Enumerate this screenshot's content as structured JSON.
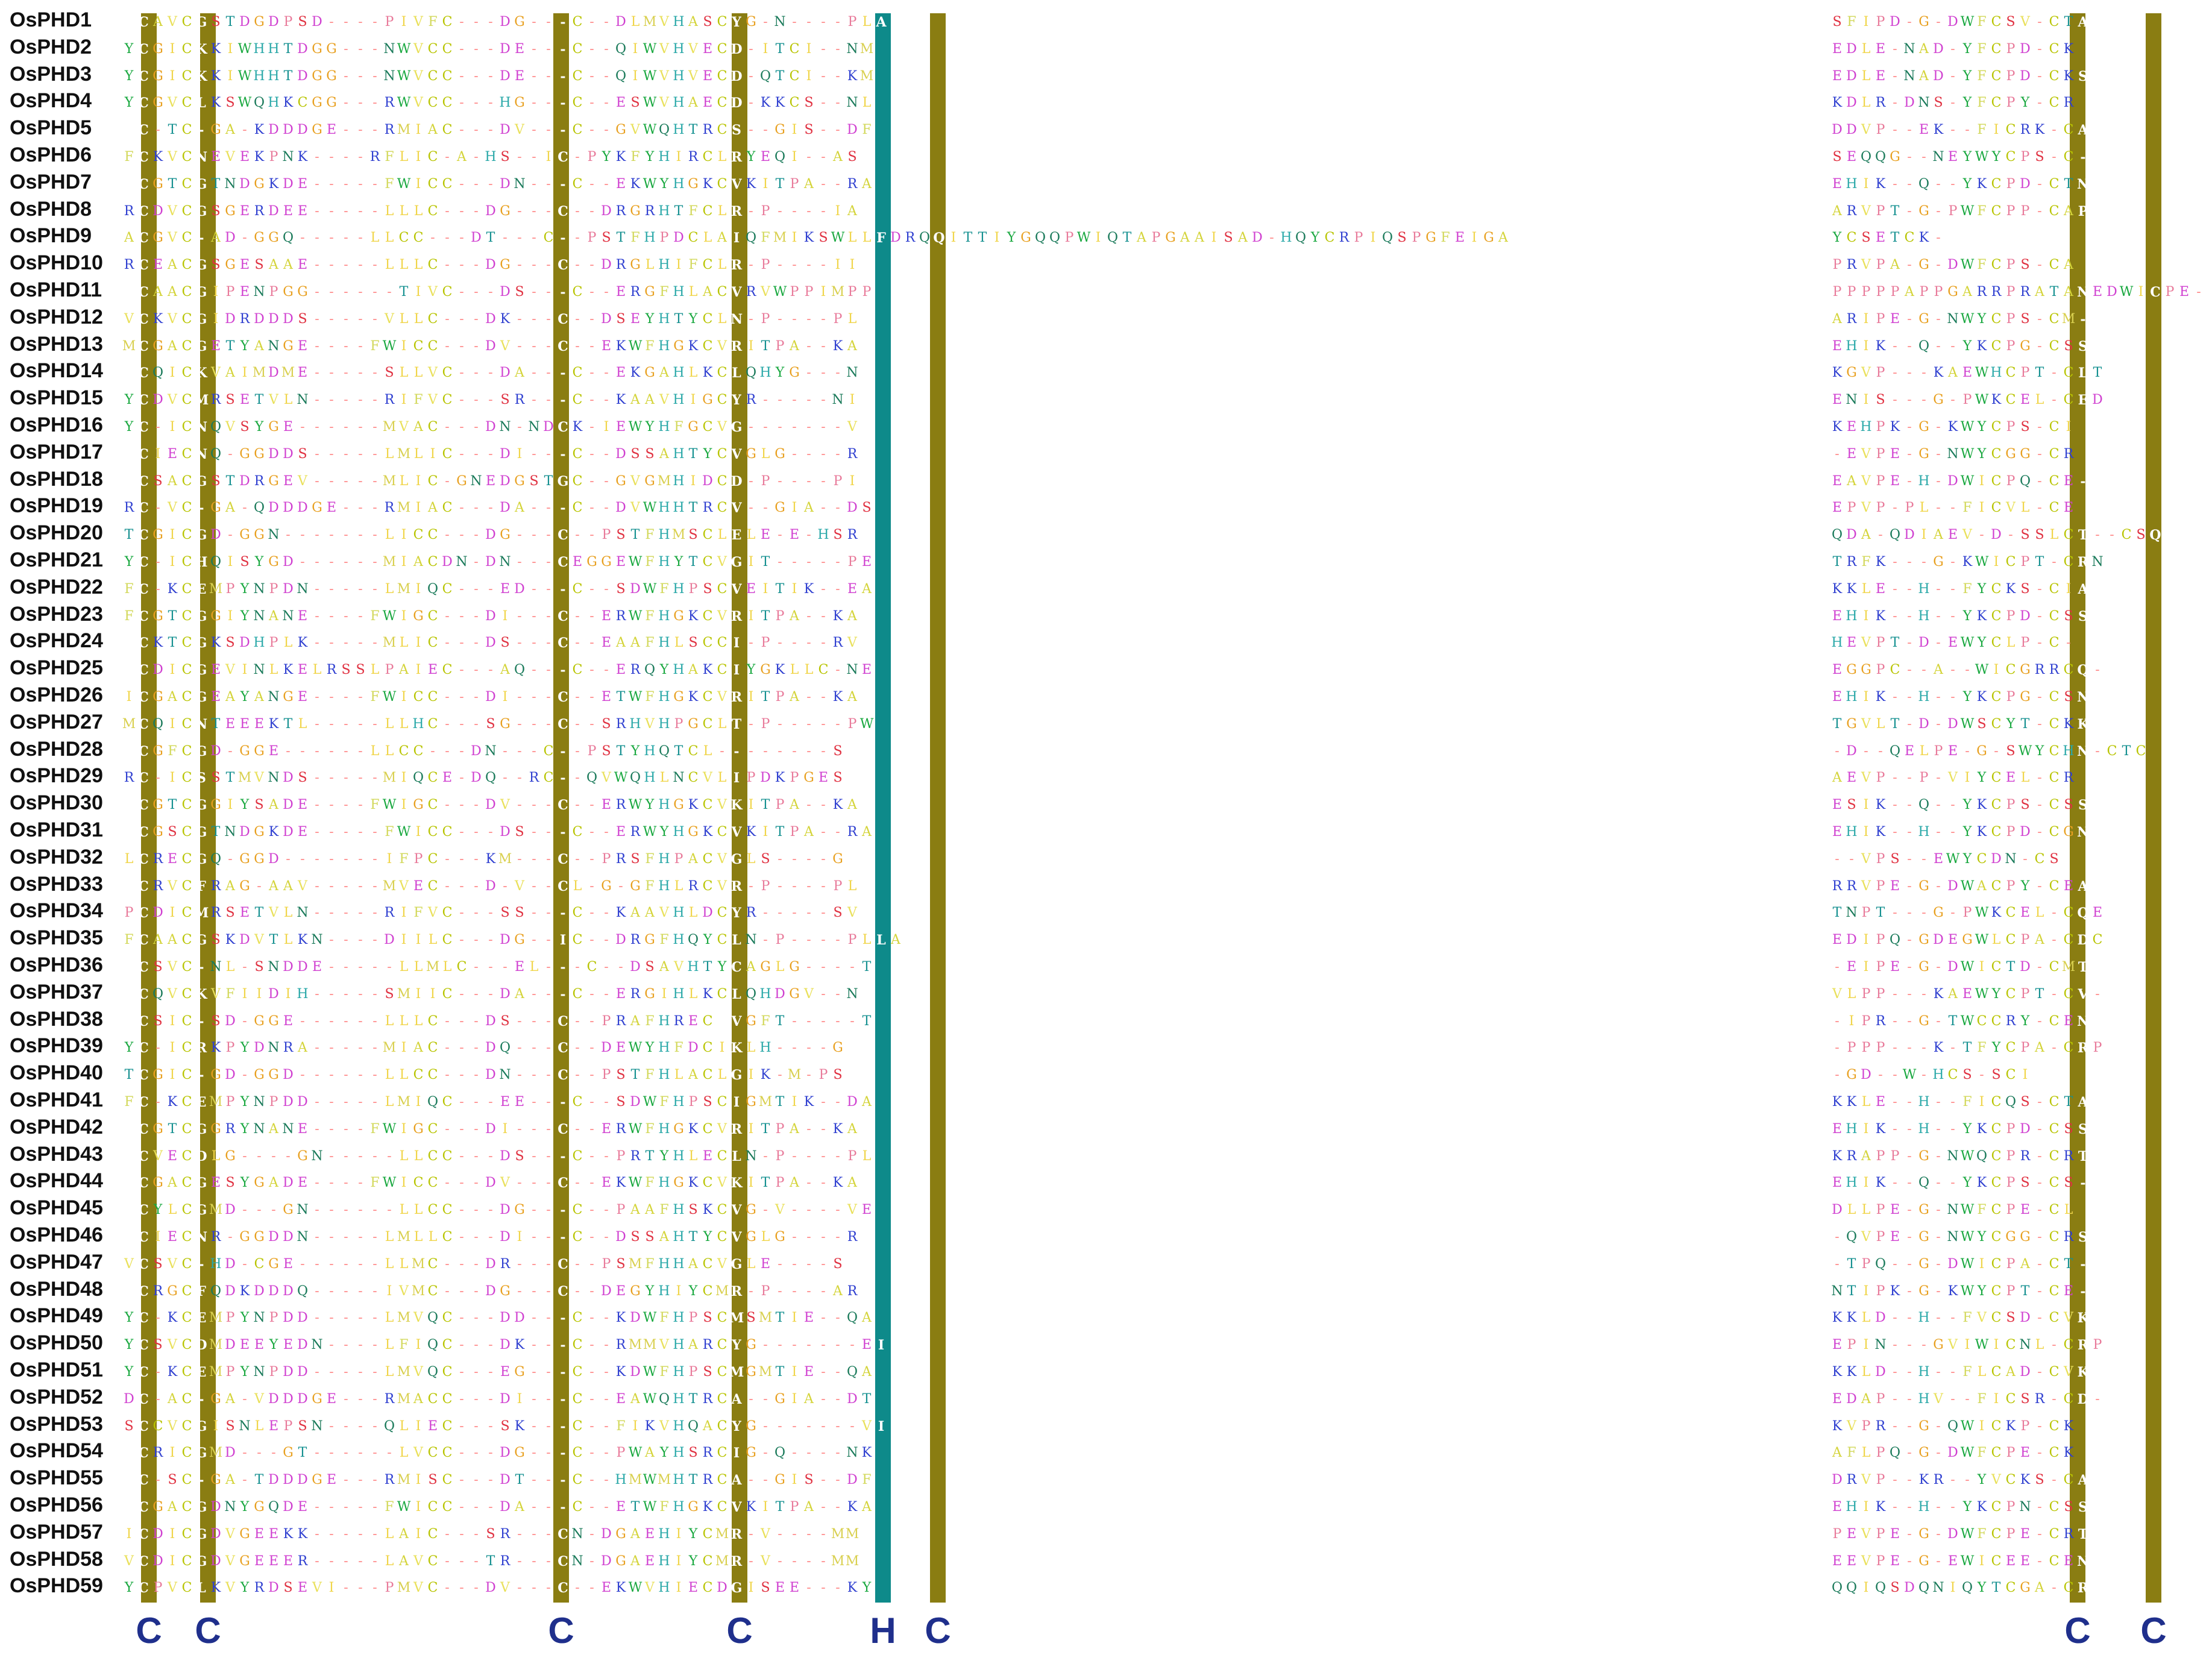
{
  "alignment": {
    "sequence_names": [
      "OsPHD1",
      "OsPHD2",
      "OsPHD3",
      "OsPHD4",
      "OsPHD5",
      "OsPHD6",
      "OsPHD7",
      "OsPHD8",
      "OsPHD9",
      "OsPHD10",
      "OsPHD11",
      "OsPHD12",
      "OsPHD13",
      "OsPHD14",
      "OsPHD15",
      "OsPHD16",
      "OsPHD17",
      "OsPHD18",
      "OsPHD19",
      "OsPHD20",
      "OsPHD21",
      "OsPHD22",
      "OsPHD23",
      "OsPHD24",
      "OsPHD25",
      "OsPHD26",
      "OsPHD27",
      "OsPHD28",
      "OsPHD29",
      "OsPHD30",
      "OsPHD31",
      "OsPHD32",
      "OsPHD33",
      "OsPHD34",
      "OsPHD35",
      "OsPHD36",
      "OsPHD37",
      "OsPHD38",
      "OsPHD39",
      "OsPHD40",
      "OsPHD41",
      "OsPHD42",
      "OsPHD43",
      "OsPHD44",
      "OsPHD45",
      "OsPHD46",
      "OsPHD47",
      "OsPHD48",
      "OsPHD49",
      "OsPHD50",
      "OsPHD51",
      "OsPHD52",
      "OsPHD53",
      "OsPHD54",
      "OsPHD55",
      "OsPHD56",
      "OsPHD57",
      "OsPHD58",
      "OsPHD59"
    ],
    "segments": [
      [
        ".CAVCGSTDGDPSD----PIVFC---DG---C--DLMVHASCYG-N----PLA",
        "SFIPD-G-DWFCSV-CTA"
      ],
      [
        "YCGICKKIWHHTDGG---NWVCC---DE---C--QIWVHVECD-ITCI--NM",
        "EDLE-NAD-YFCPD-CK"
      ],
      [
        "YCGICKKIWHHTDGG---NWVCC---DE---C--QIWVHVECD-QTCI--KM",
        "EDLE-NAD-YFCPD-CKS"
      ],
      [
        "YCGVCLKSWQHKCGG---RWVCC---HG---C--ESWVHAECD-KKCS--NL",
        "KDLR-DNS-YFCPY-CR"
      ],
      [
        ".C-TC-GA-KDDDGE---RMIAC---DV---C--GVWQHTRCS--GIS--DF",
        "DDVP--EK--FICRK-CA"
      ],
      [
        "FCKVCNEVEKPNK----RFLIC-A-HS--IC-PYKFYHIRCLRYEQI--AS",
        "SEQQG--NEYWYCPS-C-"
      ],
      [
        ".CGTCGTNDGKDE-----FWICC---DN---C--EKWYHGKCVKITPA--RA",
        "EHIK--Q--YKCPD-CTN"
      ],
      [
        "RCDVCGSGERDEE-----LLLC---DG---C--DRGRHTFCLR-P----IA",
        "ARVPT-G-PWFCPP-CAP"
      ],
      [
        "ACGVC-AD-GGQ-----LLCC---DT---C--PSTFHPDCLAIQFMIKSWLLFDRQQITTIYGQQPWIQTAPGAAISAD-HQYCRPIQSPGFEIGA",
        "YCSETCK-"
      ],
      [
        "RCEACGSGESAAE-----LLLC---DG---C--DRGLHIFCLR-P----II",
        "PRVPA-G-DWFCPS-CA"
      ],
      [
        ".CAACGIPENPGG------TIVC---DS---C--ERGFHLACVRVWPPIMPP",
        "PPPPPAPPGARRPRATANEDWICPE-CE-"
      ],
      [
        "VCKVCGIDRDDDS-----VLLC---DK---C--DSEYHTYCLN-P----PL",
        "ARIPE-G-NWYCPS-CM-"
      ],
      [
        "MCGACGETYANGE----FWICC---DV---C--EKWFHGKCVRITPA--KA",
        "EHIK--Q--YKCPG-CSS"
      ],
      [
        ".CQICKVAIMDME-----SLLVC---DA---C--EKGAHLKCLQHYG---N",
        "KGVP---KAEWHCPT-CLT"
      ],
      [
        "YCDVCMRSETVLN-----RIFVC---SR---C--KAAVHIGCYR-----NI",
        "ENIS---G-PWKCEL-CED"
      ],
      [
        "YC-ICNQVSYGE------MVAC---DN-NDCK-IEWYHFGCVG-------V",
        "KEHPK-G-KWYCPS-CI"
      ],
      [
        ".CIECNQ-GGDDS-----LMLIC---DI---C--DSSAHTYCVGLG----R",
        "-EVPE-G-NWYCGG-CR"
      ],
      [
        ".CSACGSTDRGEV-----MLIC-GNEDGSTGC--GVGMHIDCD-P----PI",
        "EAVPE-H-DWICPQ-CE-"
      ],
      [
        "RC-VC-GA-QDDDGE---RMIAC---DA---C--DVWHHTRCV--GIA--DS",
        "EPVP-PL--FICVL-CE"
      ],
      [
        "TCGICGD-GGN-------LICC---DG---C--PSTFHMSCLELE-E-HSR",
        "QDA-QDIAEV-D-SSLCT--CSQ"
      ],
      [
        "YC-ICHQISYGD------MIACDN-DN---CEGGEWFHYTCVGIT-----PE",
        "TRFK---G-KWICPT-CRN"
      ],
      [
        "FC-KCEMPYNPDN-----LMIQC---ED---C--SDWFHPSCVEITIK--EA",
        "KKLE--H--FYCKS-CIA"
      ],
      [
        "FCGTCGGIYNANE----FWIGC---DI---C--ERWFHGKCVRITPA--KA",
        "EHIK--H--YKCPD-CSS"
      ],
      [
        ".CKTCGKSDHPLK-----MLIC---DS---C--EAAFHLSCCI-P----RV",
        "HEVPT-D-EWYCLP-C-"
      ],
      [
        ".CDICGEVINLKELRSSLPAIEC---AQ---C--ERQYHAKCIYGKLLC-NE",
        "EGGPC--A--WICGRRCQ-"
      ],
      [
        "ICGACGEAYANGE----FWICC---DI---C--ETWFHGKCVRITPA--KA",
        "EHIK--H--YKCPG-CSN"
      ],
      [
        "MCQICNTEEEKTL-----LLHC---SG---C--SRHVHPGCLT-P-----PW",
        "TGVLT-D-DWSCYT-CKK"
      ],
      [
        ".CGFCGD-GGE------LLCC---DN---C--PSTYHQTCL--------S",
        "-D--QELPE-G-SWYCHN-CTC"
      ],
      [
        "RC-ICSSTMVNDS-----MIQCE-DQ--RC--QVWQHLNCVLIPDKPGES",
        "AEVP--P-VIYCEL-CR"
      ],
      [
        ".CGTCGGIYSADE----FWIGC---DV---C--ERWYHGKCVKITPA--KA",
        "ESIK--Q--YKCPS-CSS"
      ],
      [
        ".CGSCGTNDGKDE-----FWICC---DS---C--ERWYHGKCVKITPA--RA",
        "EHIK--H--YKCPD-CGN"
      ],
      [
        "LCRECGQ-GGD-------IFPC---KM---C--PRSFHPACVGLS----G",
        "--VPS--EWYCDN-CS"
      ],
      [
        ".CRVCFRAG-AAV-----MVEC---D-V--CL-G-GFHLRCVR-P----PL",
        "RRVPE-G-DWACPY-CEA"
      ],
      [
        "PCDICMRSETVLN-----RIFVC---SS---C--KAAVHLDCYR-----SV",
        "TNPT---G-PWKCEL-CQE"
      ],
      [
        "FCAACGSKDVTLKN----DIILC---DG--IC--DRGFHQYCLN-P----PLLA",
        "EDIPQ-GDEGWLCPA-CDC"
      ],
      [
        ".CSVC-NL-SNDDE-----LLMLC---EL---C--DSAVHTYCAGLG----T",
        "-EIPE-G-DWICTD-CMT"
      ],
      [
        ".CQVCKVFIIDIH-----SMIIC---DA---C--ERGIHLKCLQHDGV--N",
        "VLPP---KAEWYCPT-CV-"
      ],
      [
        ".CSIC-SD-GGE------LLLC---DS---C--PRAFHREC VGFT-----T",
        "-IPR--G-TWCCRY-CEN"
      ],
      [
        "YC-ICRKPYDNRA-----MIAC---DQ---C--DEWYHFDCIKLH----G",
        "-PPP---K-TFYCPA-CRP"
      ],
      [
        "TCGIC-GD-GGD------LLCC---DN---C--PSTFHLACLGIK-M-PS",
        "-GD--W-HCS-SCI"
      ],
      [
        "FC-KCEMPYNPDD-----LMIQC---EE---C--SDWFHPSCIGMTIK--DA",
        "KKLE--H--FICQS-CTA"
      ],
      [
        ".CGTCGGRYNANE----FWIGC---DI---C--ERWFHGKCVRITPA--KA",
        "EHIK--H--YKCPD-CSS"
      ],
      [
        ".CVECDLG----GN-----LLCC---DS---C--PRTYHLECLN-P----PL",
        "KRAPP-G-NWQCPR-CRT"
      ],
      [
        ".CGACGESYGADE----FWICC---DV---C--EKWFHGKCVKITPA--KA",
        "EHIK--Q--YKCPS-CS-"
      ],
      [
        ".CYLCGMD---GN------LLCC---DG---C--PAAFHSKCVG-V----VE",
        "DLLPE-G-NWFCPE-CL"
      ],
      [
        ".CIECNR-GGDDN-----LMLLC---DI---C--DSSAHTYCVGLG----R",
        "-QVPE-G-NWYCGG-CRS"
      ],
      [
        "VCSVC-HD-CGE------LLMC---DR---C--PSMFHHACVGLE----S",
        "-TPQ--G-DWICPA-CT-"
      ],
      [
        ".CRGCFQDKDDDQ-----IVMC---DG---C--DEGYHIYCMR-P----AR",
        "NTIPK-G-KWYCPT-CE-"
      ],
      [
        "YC-KCEMPYNPDD-----LMVQC---DD---C--KDWFHPSCMSMTIE--QA",
        "KKLD--H--FVCSD-CVK"
      ],
      [
        "YCSVCDMDEEYEDN----LFIQC---DK---C--RMMVHARCYG-------EI",
        "EPIN---GVIWICNL-CRP"
      ],
      [
        "YC-KCEMPYNPDD-----LMVQC---EG---C--KDWFHPSCMGMTIE--QA",
        "KKLD--H--FLCAD-CVK"
      ],
      [
        "DC-AC-GA-VDDDGE---RMACC---DI---C--EAWQHTRCA--GIA--DT",
        "EDAP--HV--FICSR-CD-"
      ],
      [
        "SCCVCGISNLEPSN----QLIEC---SK---C--FIKVHQACYG-------VI",
        "KVPR--G-QWICKP-CK"
      ],
      [
        ".CRICGMD---GT------LVCC---DG---C--PWAYHSRCIG-Q----NK",
        "AFLPQ-G-DWFCPE-CK"
      ],
      [
        ".C-SC-GA-TDDDGE---RMISC---DT---C--HMWMHTRCA--GIS--DF",
        "DRVP--KR--YVCKS-CA"
      ],
      [
        ".CGACGDNYGQDE-----FWICC---DA---C--ETWFHGKCVKITPA--KA",
        "EHIK--H--YKCPN-CSS"
      ],
      [
        "ICDICGDVGEEKK-----LAIC---SR---CN-DGAEHIYCMR-V----MM",
        "PEVPE-G-DWFCPE-CRT"
      ],
      [
        "VCDICGDVGEEER-----LAVC---TR---CN-DGAEHIYCMR-V----MM",
        "EEVPE-G-EWICEE-CEN"
      ],
      [
        "YCPVCLKVYRDSEVI---PMVC---DV---C--EKWVHIECDGISEE---KY",
        "QQIQSDQNIQYTCGA-CR"
      ]
    ],
    "colors": {
      "C": "#b8c400",
      "G": "#e8a020",
      "A": "#d4d43a",
      "V": "#e9e05a",
      "L": "#f0d54a",
      "I": "#f0d54a",
      "M": "#d9d050",
      "F": "#d2d85a",
      "W": "#1aa840",
      "Y": "#1aa840",
      "H": "#2aa8a8",
      "P": "#e87a9a",
      "S": "#e03040",
      "T": "#159090",
      "N": "#1a7a5a",
      "Q": "#1a7a5a",
      "D": "#d040d0",
      "E": "#d040d0",
      "K": "#3040d0",
      "R": "#3040d0",
      "-": "#ff8a8a",
      "conserved_C_bg": "#8a7d12",
      "conserved_H_bg": "#0e8a8a",
      "name_text": "#111111",
      "motif_text": "#1f2f8c"
    },
    "motif_labels": [
      "C",
      "C",
      "C",
      "C",
      "H",
      "C",
      "C",
      "C"
    ]
  }
}
